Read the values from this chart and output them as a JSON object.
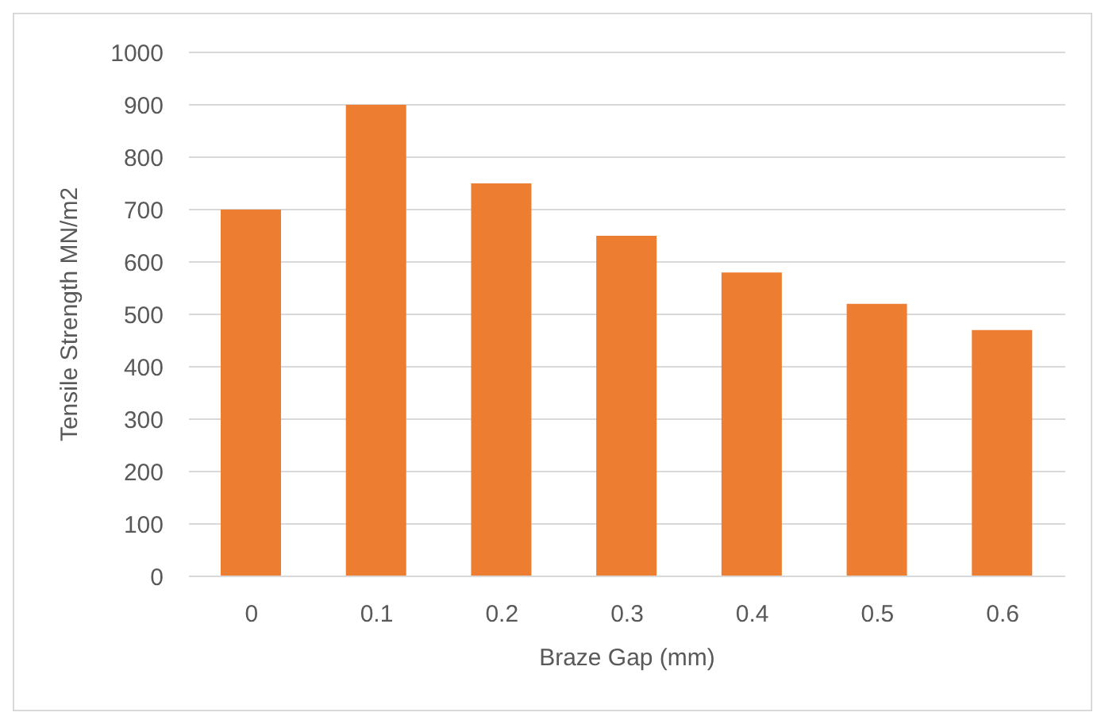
{
  "chart_data": {
    "type": "bar",
    "xlabel": "Braze Gap (mm)",
    "ylabel": "Tensile Strength MN/m2",
    "categories": [
      "0",
      "0.1",
      "0.2",
      "0.3",
      "0.4",
      "0.5",
      "0.6"
    ],
    "values": [
      700,
      900,
      750,
      650,
      580,
      520,
      470
    ],
    "color": "#ed7d31",
    "ylim": [
      0,
      1000
    ],
    "yticks": [
      0,
      100,
      200,
      300,
      400,
      500,
      600,
      700,
      800,
      900,
      1000
    ],
    "grid": "y"
  }
}
